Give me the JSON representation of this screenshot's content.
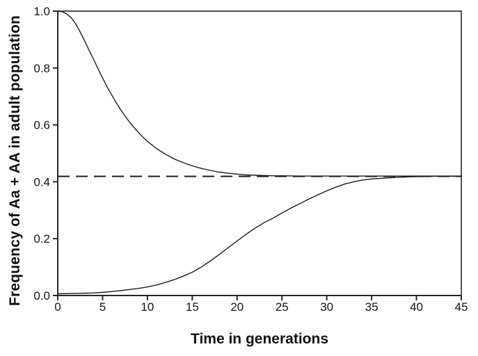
{
  "chart_data": {
    "type": "line",
    "title": "",
    "xlabel": "Time in generations",
    "ylabel": "Frequency of Aa + AA in adult population",
    "xlim": [
      0,
      45
    ],
    "ylim": [
      0.0,
      1.0
    ],
    "grid": false,
    "legend": null,
    "x_ticks": [
      0,
      5,
      10,
      15,
      20,
      25,
      30,
      35,
      40,
      45
    ],
    "x_tick_labels": [
      "0",
      "5",
      "10",
      "15",
      "20",
      "25",
      "30",
      "35",
      "40",
      "45"
    ],
    "y_ticks": [
      0.0,
      0.2,
      0.4,
      0.6,
      0.8,
      1.0
    ],
    "y_tick_labels": [
      "0.0",
      "0.2",
      "0.4",
      "0.6",
      "0.8",
      "1.0"
    ],
    "reference_line": {
      "y": 0.419,
      "style": "dashed"
    },
    "colors": {
      "background": "#ffffff",
      "line": "#1c1c1c",
      "frame": "#4f4f4f",
      "axis": "#262626",
      "text": "#111111"
    },
    "series": [
      {
        "id": "upper-curve",
        "style": "solid",
        "points": [
          [
            0,
            1.0
          ],
          [
            0.5,
            0.998
          ],
          [
            1,
            0.99
          ],
          [
            1.5,
            0.977
          ],
          [
            2,
            0.955
          ],
          [
            2.5,
            0.927
          ],
          [
            3,
            0.895
          ],
          [
            3.5,
            0.862
          ],
          [
            4,
            0.83
          ],
          [
            4.5,
            0.797
          ],
          [
            5,
            0.765
          ],
          [
            5.5,
            0.734
          ],
          [
            6,
            0.706
          ],
          [
            6.5,
            0.679
          ],
          [
            7,
            0.654
          ],
          [
            7.5,
            0.631
          ],
          [
            8,
            0.61
          ],
          [
            8.5,
            0.591
          ],
          [
            9,
            0.573
          ],
          [
            9.5,
            0.557
          ],
          [
            10,
            0.542
          ],
          [
            11,
            0.517
          ],
          [
            12,
            0.497
          ],
          [
            13,
            0.48
          ],
          [
            14,
            0.467
          ],
          [
            15,
            0.456
          ],
          [
            16,
            0.447
          ],
          [
            17,
            0.44
          ],
          [
            18,
            0.434
          ],
          [
            19,
            0.43
          ],
          [
            20,
            0.427
          ],
          [
            21,
            0.424
          ],
          [
            22,
            0.423
          ],
          [
            23,
            0.422
          ],
          [
            24,
            0.421
          ],
          [
            25,
            0.421
          ],
          [
            27,
            0.42
          ],
          [
            30,
            0.42
          ],
          [
            35,
            0.42
          ],
          [
            40,
            0.42
          ],
          [
            45,
            0.42
          ]
        ]
      },
      {
        "id": "lower-curve",
        "style": "solid",
        "points": [
          [
            0,
            0.006
          ],
          [
            2,
            0.007
          ],
          [
            4,
            0.009
          ],
          [
            5,
            0.011
          ],
          [
            6,
            0.014
          ],
          [
            7,
            0.017
          ],
          [
            8,
            0.021
          ],
          [
            9,
            0.025
          ],
          [
            10,
            0.03
          ],
          [
            11,
            0.037
          ],
          [
            12,
            0.046
          ],
          [
            13,
            0.056
          ],
          [
            14,
            0.068
          ],
          [
            15,
            0.082
          ],
          [
            16,
            0.1
          ],
          [
            17,
            0.121
          ],
          [
            18,
            0.144
          ],
          [
            19,
            0.168
          ],
          [
            20,
            0.192
          ],
          [
            21,
            0.215
          ],
          [
            22,
            0.237
          ],
          [
            23,
            0.256
          ],
          [
            24,
            0.272
          ],
          [
            25,
            0.29
          ],
          [
            26,
            0.307
          ],
          [
            27,
            0.323
          ],
          [
            28,
            0.339
          ],
          [
            29,
            0.354
          ],
          [
            30,
            0.368
          ],
          [
            31,
            0.381
          ],
          [
            32,
            0.392
          ],
          [
            33,
            0.4
          ],
          [
            34,
            0.406
          ],
          [
            35,
            0.41
          ],
          [
            36,
            0.412
          ],
          [
            37,
            0.414
          ],
          [
            38,
            0.416
          ],
          [
            39,
            0.417
          ],
          [
            40,
            0.418
          ],
          [
            42,
            0.419
          ],
          [
            45,
            0.419
          ]
        ]
      }
    ]
  }
}
